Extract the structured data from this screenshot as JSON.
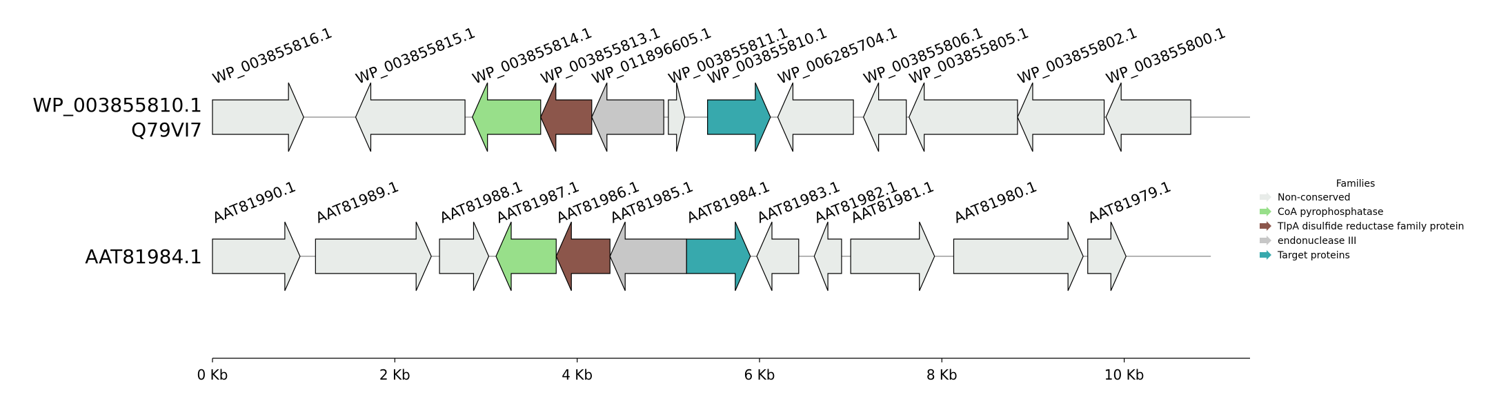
{
  "scale": {
    "max_kb": 11.38
  },
  "axis": {
    "ticks": [
      {
        "kb": 0,
        "label": "0 Kb"
      },
      {
        "kb": 2,
        "label": "2 Kb"
      },
      {
        "kb": 4,
        "label": "4 Kb"
      },
      {
        "kb": 6,
        "label": "6 Kb"
      },
      {
        "kb": 8,
        "label": "8 Kb"
      },
      {
        "kb": 10,
        "label": "10 Kb"
      }
    ]
  },
  "families": {
    "title": "Families",
    "items": [
      {
        "key": "nc",
        "label": "Non-conserved",
        "color": "#e8ece9"
      },
      {
        "key": "coa",
        "label": "CoA pyrophosphatase",
        "color": "#98df8a"
      },
      {
        "key": "tlpa",
        "label": "TlpA disulfide reductase family protein",
        "color": "#8c564b"
      },
      {
        "key": "endo",
        "label": "endonuclease III",
        "color": "#c7c7c7"
      },
      {
        "key": "target",
        "label": "Target proteins",
        "color": "#37a9ad"
      }
    ]
  },
  "tracks": [
    {
      "title_lines": [
        "WP_003855810.1",
        "Q79VI7"
      ],
      "end_kb": 11.38,
      "genes": [
        {
          "label": "WP_003855816.1",
          "start_kb": 0.0,
          "end_kb": 1.0,
          "strand": "+",
          "family": "nc"
        },
        {
          "label": "WP_003855815.1",
          "start_kb": 1.57,
          "end_kb": 2.77,
          "strand": "-",
          "family": "nc"
        },
        {
          "label": "WP_003855814.1",
          "start_kb": 2.85,
          "end_kb": 3.6,
          "strand": "-",
          "family": "coa"
        },
        {
          "label": "WP_003855813.1",
          "start_kb": 3.6,
          "end_kb": 4.16,
          "strand": "-",
          "family": "tlpa"
        },
        {
          "label": "WP_011896605.1",
          "start_kb": 4.16,
          "end_kb": 4.95,
          "strand": "-",
          "family": "endo"
        },
        {
          "label": "WP_003855811.1",
          "start_kb": 5.0,
          "end_kb": 5.18,
          "strand": "+",
          "family": "nc"
        },
        {
          "label": "WP_003855810.1",
          "start_kb": 5.43,
          "end_kb": 6.12,
          "strand": "+",
          "family": "target"
        },
        {
          "label": "WP_006285704.1",
          "start_kb": 6.2,
          "end_kb": 7.03,
          "strand": "-",
          "family": "nc"
        },
        {
          "label": "WP_003855806.1",
          "start_kb": 7.14,
          "end_kb": 7.61,
          "strand": "-",
          "family": "nc"
        },
        {
          "label": "WP_003855805.1",
          "start_kb": 7.64,
          "end_kb": 8.83,
          "strand": "-",
          "family": "nc"
        },
        {
          "label": "WP_003855802.1",
          "start_kb": 8.83,
          "end_kb": 9.78,
          "strand": "-",
          "family": "nc"
        },
        {
          "label": "WP_003855800.1",
          "start_kb": 9.8,
          "end_kb": 10.73,
          "strand": "-",
          "family": "nc"
        }
      ]
    },
    {
      "title_lines": [
        "AAT81984.1"
      ],
      "end_kb": 10.95,
      "genes": [
        {
          "label": "AAT81990.1",
          "start_kb": 0.0,
          "end_kb": 0.96,
          "strand": "+",
          "family": "nc"
        },
        {
          "label": "AAT81989.1",
          "start_kb": 1.13,
          "end_kb": 2.4,
          "strand": "+",
          "family": "nc"
        },
        {
          "label": "AAT81988.1",
          "start_kb": 2.49,
          "end_kb": 3.03,
          "strand": "+",
          "family": "nc"
        },
        {
          "label": "AAT81987.1",
          "start_kb": 3.11,
          "end_kb": 3.77,
          "strand": "-",
          "family": "coa"
        },
        {
          "label": "AAT81986.1",
          "start_kb": 3.77,
          "end_kb": 4.36,
          "strand": "-",
          "family": "tlpa"
        },
        {
          "label": "AAT81985.1",
          "start_kb": 4.36,
          "end_kb": 5.2,
          "strand": "-",
          "family": "endo"
        },
        {
          "label": "AAT81984.1",
          "start_kb": 5.2,
          "end_kb": 5.9,
          "strand": "+",
          "family": "target"
        },
        {
          "label": "AAT81983.1",
          "start_kb": 5.97,
          "end_kb": 6.43,
          "strand": "-",
          "family": "nc"
        },
        {
          "label": "AAT81982.1",
          "start_kb": 6.6,
          "end_kb": 6.9,
          "strand": "-",
          "family": "nc"
        },
        {
          "label": "AAT81981.1",
          "start_kb": 7.0,
          "end_kb": 7.92,
          "strand": "+",
          "family": "nc"
        },
        {
          "label": "AAT81980.1",
          "start_kb": 8.13,
          "end_kb": 9.55,
          "strand": "+",
          "family": "nc"
        },
        {
          "label": "AAT81979.1",
          "start_kb": 9.6,
          "end_kb": 10.02,
          "strand": "+",
          "family": "nc"
        }
      ]
    }
  ]
}
